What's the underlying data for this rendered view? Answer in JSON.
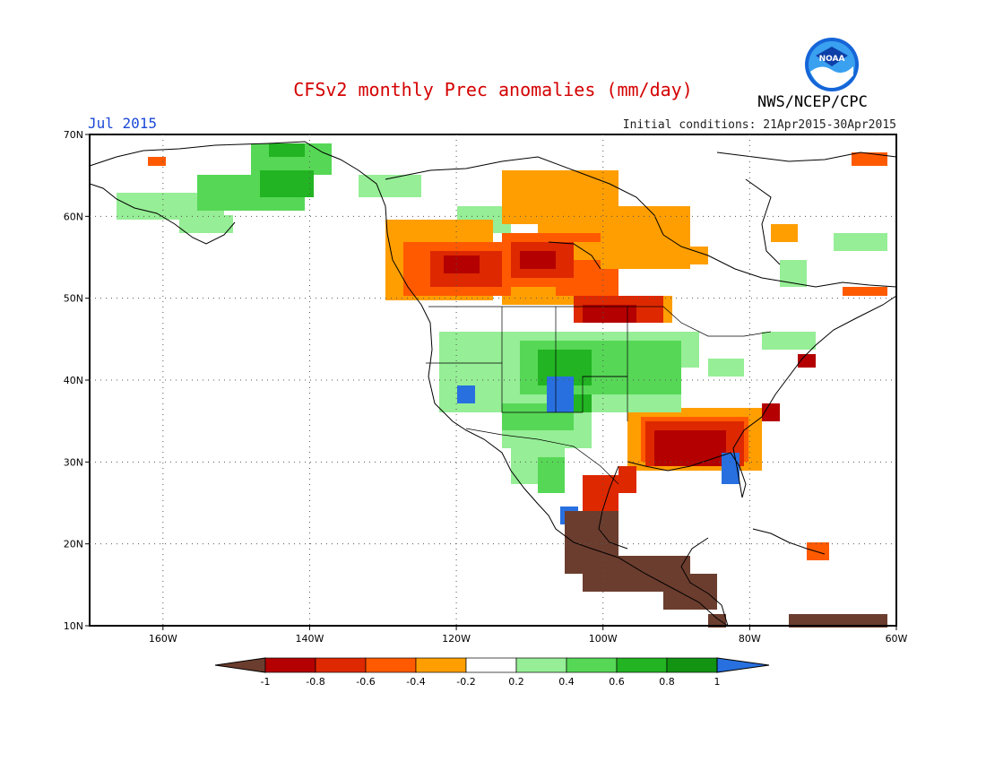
{
  "header": {
    "title": "CFSv2 monthly Prec anomalies (mm/day)",
    "agency": "NWS/NCEP/CPC",
    "logo_text": "NOAA",
    "month": "Jul 2015",
    "initial_conditions": "Initial conditions: 21Apr2015-30Apr2015"
  },
  "map": {
    "lon_range": [
      -170,
      -60
    ],
    "lat_range": [
      10,
      70
    ],
    "lat_labels": [
      "70N",
      "60N",
      "50N",
      "40N",
      "30N",
      "20N",
      "10N"
    ],
    "lon_labels": [
      "160W",
      "140W",
      "120W",
      "100W",
      "80W",
      "60W"
    ],
    "grid": "dotted"
  },
  "colorbar": {
    "levels": [
      "-1",
      "-0.8",
      "-0.6",
      "-0.4",
      "-0.2",
      "0.2",
      "0.4",
      "0.6",
      "0.8",
      "1"
    ],
    "colors": [
      "#6b3d2e",
      "#b40000",
      "#de2800",
      "#ff5a00",
      "#ff9e00",
      "#ffffff",
      "#96ee96",
      "#56d856",
      "#22b422",
      "#129412",
      "#2870e0"
    ]
  },
  "colors": {
    "brown": "#6b3d2e",
    "dark_red": "#b40000",
    "red": "#de2800",
    "orange_red": "#ff5a00",
    "orange": "#ff9e00",
    "light_green": "#96ee96",
    "green": "#56d856",
    "mid_green": "#22b422",
    "dark_green": "#129412",
    "blue": "#2870e0"
  }
}
